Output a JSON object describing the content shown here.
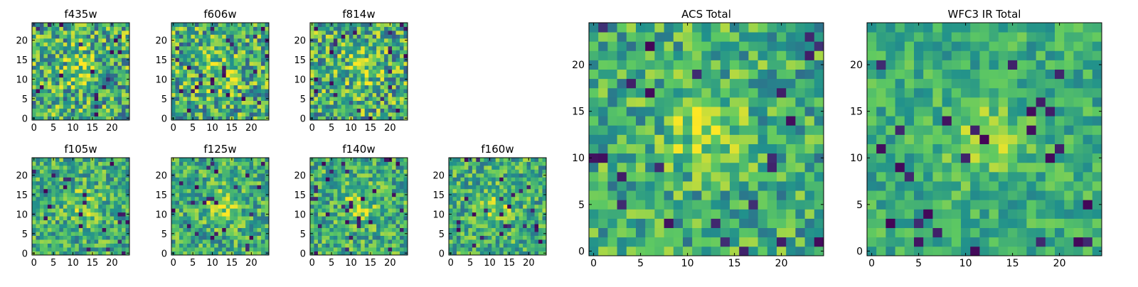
{
  "chart_data": [
    {
      "type": "heatmap",
      "title": "f435w",
      "xticks": [
        "0",
        "5",
        "10",
        "15",
        "20"
      ],
      "yticks": [
        "0",
        "5",
        "10",
        "15",
        "20"
      ],
      "grid_size": 25,
      "hotspot": [
        12,
        12
      ],
      "contrast": "high",
      "seed": 11
    },
    {
      "type": "heatmap",
      "title": "f606w",
      "xticks": [
        "0",
        "5",
        "10",
        "15",
        "20"
      ],
      "yticks": [
        "0",
        "5",
        "10",
        "15",
        "20"
      ],
      "grid_size": 25,
      "hotspot": [
        12,
        12
      ],
      "contrast": "high",
      "seed": 23
    },
    {
      "type": "heatmap",
      "title": "f814w",
      "xticks": [
        "0",
        "5",
        "10",
        "15",
        "20"
      ],
      "yticks": [
        "0",
        "5",
        "10",
        "15",
        "20"
      ],
      "grid_size": 25,
      "hotspot": [
        13,
        13
      ],
      "contrast": "high",
      "seed": 37
    },
    {
      "type": "heatmap",
      "title": "f105w",
      "xticks": [
        "0",
        "5",
        "10",
        "15",
        "20"
      ],
      "yticks": [
        "0",
        "5",
        "10",
        "15",
        "20"
      ],
      "grid_size": 25,
      "hotspot": [
        12,
        12
      ],
      "contrast": "medium",
      "seed": 41
    },
    {
      "type": "heatmap",
      "title": "f125w",
      "xticks": [
        "0",
        "5",
        "10",
        "15",
        "20"
      ],
      "yticks": [
        "0",
        "5",
        "10",
        "15",
        "20"
      ],
      "grid_size": 25,
      "hotspot": [
        12,
        12
      ],
      "contrast": "medium",
      "seed": 53
    },
    {
      "type": "heatmap",
      "title": "f140w",
      "xticks": [
        "0",
        "5",
        "10",
        "15",
        "20"
      ],
      "yticks": [
        "0",
        "5",
        "10",
        "15",
        "20"
      ],
      "grid_size": 25,
      "hotspot": [
        12,
        12
      ],
      "contrast": "medium",
      "seed": 67
    },
    {
      "type": "heatmap",
      "title": "f160w",
      "xticks": [
        "0",
        "5",
        "10",
        "15",
        "20"
      ],
      "yticks": [
        "0",
        "5",
        "10",
        "15",
        "20"
      ],
      "grid_size": 25,
      "hotspot": [
        12,
        12
      ],
      "contrast": "medium",
      "seed": 79
    },
    {
      "type": "heatmap",
      "title": "ACS Total",
      "xticks": [
        "0",
        "5",
        "10",
        "15",
        "20"
      ],
      "yticks": [
        "0",
        "5",
        "10",
        "15",
        "20"
      ],
      "grid_size": 25,
      "hotspot": [
        12,
        13
      ],
      "contrast": "medium",
      "seed": 83
    },
    {
      "type": "heatmap",
      "title": "WFC3 IR Total",
      "xticks": [
        "0",
        "5",
        "10",
        "15",
        "20"
      ],
      "yticks": [
        "0",
        "5",
        "10",
        "15",
        "20"
      ],
      "grid_size": 25,
      "hotspot": [
        12,
        12
      ],
      "contrast": "low",
      "seed": 97
    }
  ],
  "colormap": [
    "#440154",
    "#3b528b",
    "#21918c",
    "#5ec962",
    "#fde725"
  ]
}
